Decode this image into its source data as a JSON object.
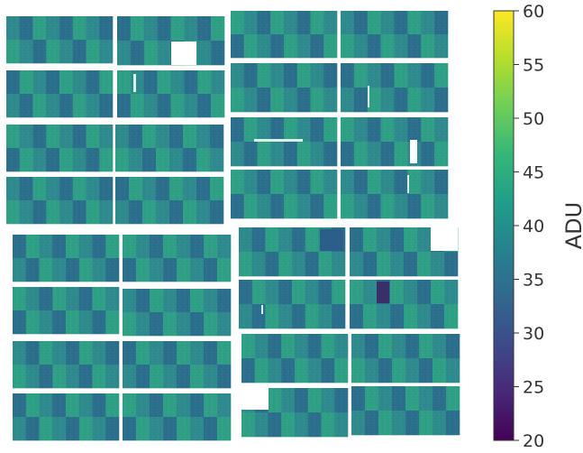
{
  "colorbar": {
    "label": "ADU",
    "min": 20,
    "max": 60,
    "ticks": [
      {
        "value": 20,
        "label": "20"
      },
      {
        "value": 25,
        "label": "25"
      },
      {
        "value": 30,
        "label": "30"
      },
      {
        "value": 35,
        "label": "35"
      },
      {
        "value": 40,
        "label": "40"
      },
      {
        "value": 45,
        "label": "45"
      },
      {
        "value": 50,
        "label": "50"
      },
      {
        "value": 55,
        "label": "55"
      },
      {
        "value": 60,
        "label": "60"
      }
    ],
    "colormap": "viridis",
    "stops": [
      "#440154",
      "#482878",
      "#3e4a89",
      "#31688e",
      "#26828e",
      "#1f9e89",
      "#35b779",
      "#6ece58",
      "#b5de2b",
      "#fde725"
    ]
  },
  "image": {
    "colors": {
      "background": "#ffffff",
      "panel_base": "#2f8a8d",
      "panel_dark": "#2b6f8c",
      "panel_light": "#2fa085",
      "dead_dark": "#3a2f6b",
      "dead_white": "#ffffff"
    }
  }
}
